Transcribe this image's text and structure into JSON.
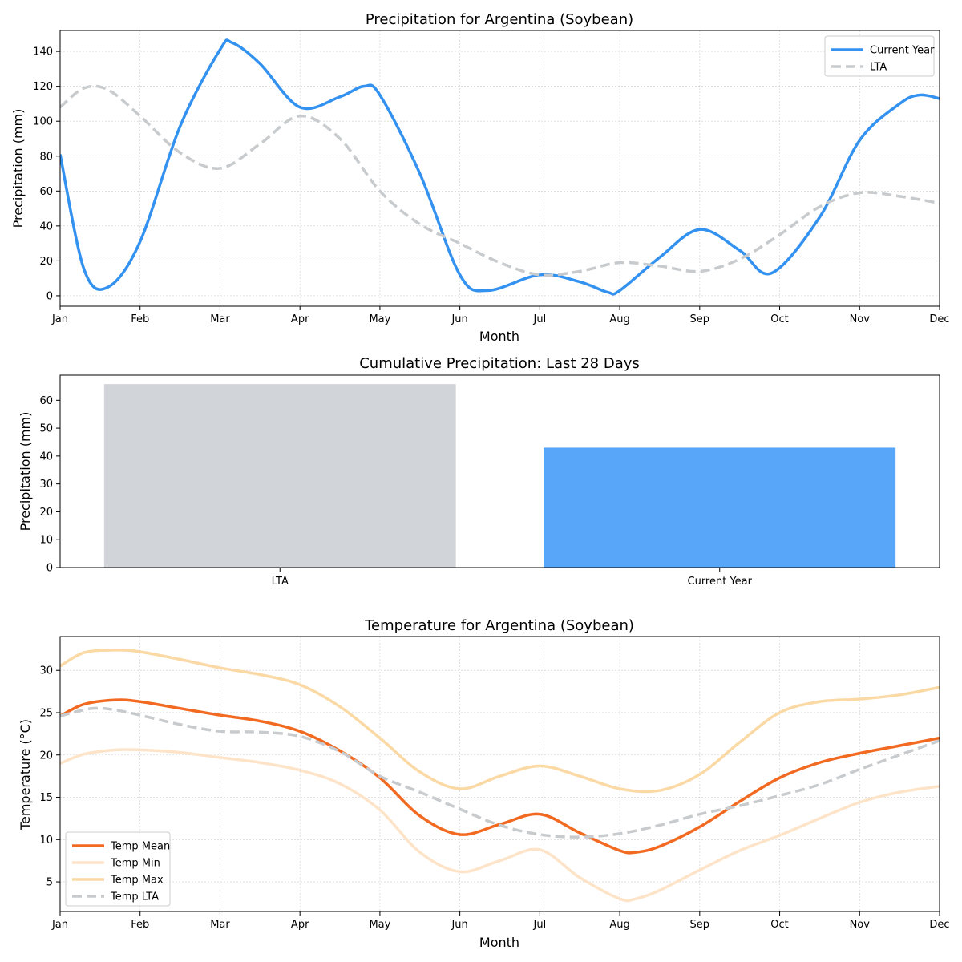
{
  "chart_data": [
    {
      "type": "line",
      "title": "Precipitation for Argentina (Soybean)",
      "xlabel": "Month",
      "ylabel": "Precipitation (mm)",
      "categories": [
        "Jan",
        "Feb",
        "Mar",
        "Apr",
        "May",
        "Jun",
        "Jul",
        "Aug",
        "Sep",
        "Oct",
        "Nov",
        "Dec"
      ],
      "xlim": [
        0,
        11
      ],
      "ylim": [
        -6,
        152
      ],
      "yticks": [
        0,
        20,
        40,
        60,
        80,
        100,
        120,
        140
      ],
      "grid": true,
      "legend_position": "top-right",
      "series": [
        {
          "name": "Current Year",
          "color": "#3391f0",
          "style": "solid",
          "x": [
            0,
            0.3,
            0.6,
            1.0,
            1.5,
            2.0,
            2.15,
            2.5,
            3.0,
            3.5,
            3.8,
            4.0,
            4.5,
            5.0,
            5.35,
            6.0,
            6.5,
            6.85,
            7.0,
            7.5,
            8.0,
            8.5,
            8.9,
            9.5,
            10.0,
            10.5,
            10.75,
            11.0
          ],
          "y": [
            81,
            15,
            5,
            31,
            97,
            141,
            145,
            133,
            108,
            114,
            120,
            115,
            70,
            12,
            3,
            12,
            8,
            2,
            3,
            22,
            38,
            26,
            13,
            45,
            89,
            110,
            115,
            113
          ]
        },
        {
          "name": "LTA",
          "color": "#c8cbcd",
          "style": "dashed",
          "x": [
            0,
            0.3,
            0.6,
            1.0,
            1.5,
            2.0,
            2.5,
            3.0,
            3.5,
            4.0,
            4.5,
            5.0,
            5.5,
            6.0,
            6.5,
            7.0,
            7.5,
            8.0,
            8.5,
            9.0,
            9.5,
            10.0,
            10.5,
            11.0
          ],
          "y": [
            108,
            119,
            118,
            103,
            82,
            73,
            87,
            103,
            90,
            60,
            41,
            30,
            19,
            12,
            14,
            19,
            17,
            14,
            21,
            35,
            51,
            59,
            57,
            53
          ]
        }
      ]
    },
    {
      "type": "bar",
      "title": "Cumulative Precipitation: Last 28 Days",
      "xlabel": "",
      "ylabel": "Precipitation (mm)",
      "categories": [
        "LTA",
        "Current Year"
      ],
      "values": [
        65.8,
        43.0
      ],
      "colors": [
        "#d1d5d9",
        "#58a6fa"
      ],
      "ylim": [
        0,
        69
      ],
      "yticks": [
        0,
        10,
        20,
        30,
        40,
        50,
        60
      ],
      "grid": false
    },
    {
      "type": "line",
      "title": "Temperature for Argentina (Soybean)",
      "xlabel": "Month",
      "ylabel": "Temperature (°C)",
      "categories": [
        "Jan",
        "Feb",
        "Mar",
        "Apr",
        "May",
        "Jun",
        "Jul",
        "Aug",
        "Sep",
        "Oct",
        "Nov",
        "Dec"
      ],
      "xlim": [
        0,
        11
      ],
      "ylim": [
        1.5,
        34
      ],
      "yticks": [
        5,
        10,
        15,
        20,
        25,
        30
      ],
      "grid": true,
      "legend_position": "lower-left",
      "series": [
        {
          "name": "Temp Mean",
          "color": "#f26a21",
          "style": "solid",
          "x": [
            0,
            0.3,
            0.7,
            1.0,
            1.5,
            2.0,
            2.5,
            3.0,
            3.5,
            4.0,
            4.5,
            5.0,
            5.5,
            6.0,
            6.5,
            7.0,
            7.2,
            7.5,
            8.0,
            8.5,
            9.0,
            9.5,
            10.0,
            10.5,
            11.0
          ],
          "y": [
            24.6,
            26.0,
            26.5,
            26.3,
            25.5,
            24.7,
            24.0,
            22.8,
            20.5,
            17.3,
            12.8,
            10.6,
            11.8,
            13.0,
            10.8,
            8.7,
            8.5,
            9.2,
            11.5,
            14.5,
            17.3,
            19.1,
            20.2,
            21.1,
            22.0
          ]
        },
        {
          "name": "Temp Min",
          "color": "#fde4c8",
          "style": "solid",
          "x": [
            0,
            0.3,
            0.7,
            1.0,
            1.5,
            2.0,
            2.5,
            3.0,
            3.5,
            4.0,
            4.5,
            5.0,
            5.5,
            6.0,
            6.5,
            7.0,
            7.2,
            7.5,
            8.0,
            8.5,
            9.0,
            9.5,
            10.0,
            10.5,
            11.0
          ],
          "y": [
            19.0,
            20.1,
            20.6,
            20.6,
            20.3,
            19.7,
            19.1,
            18.2,
            16.6,
            13.5,
            8.5,
            6.2,
            7.5,
            8.8,
            5.5,
            3.0,
            3.0,
            4.0,
            6.4,
            8.7,
            10.5,
            12.5,
            14.4,
            15.6,
            16.3
          ]
        },
        {
          "name": "Temp Max",
          "color": "#fbd9a5",
          "style": "solid",
          "x": [
            0,
            0.3,
            0.7,
            1.0,
            1.5,
            2.0,
            2.5,
            3.0,
            3.5,
            4.0,
            4.5,
            5.0,
            5.5,
            6.0,
            6.5,
            7.0,
            7.5,
            8.0,
            8.5,
            9.0,
            9.5,
            10.0,
            10.5,
            11.0
          ],
          "y": [
            30.5,
            32.1,
            32.4,
            32.2,
            31.3,
            30.3,
            29.5,
            28.3,
            25.7,
            22.0,
            18.0,
            16.0,
            17.5,
            18.7,
            17.5,
            16.0,
            15.8,
            17.7,
            21.5,
            25.0,
            26.3,
            26.6,
            27.1,
            28.0
          ]
        },
        {
          "name": "Temp LTA",
          "color": "#c8cbcd",
          "style": "dashed",
          "x": [
            0,
            0.4,
            0.7,
            1.0,
            1.5,
            2.0,
            2.5,
            3.0,
            3.5,
            4.0,
            4.5,
            5.0,
            5.5,
            6.0,
            6.5,
            7.0,
            7.5,
            8.0,
            8.5,
            9.0,
            9.5,
            10.0,
            10.5,
            11.0
          ],
          "y": [
            24.6,
            25.5,
            25.3,
            24.7,
            23.6,
            22.8,
            22.7,
            22.2,
            20.4,
            17.5,
            15.6,
            13.6,
            11.7,
            10.6,
            10.3,
            10.7,
            11.7,
            13.0,
            14.0,
            15.2,
            16.5,
            18.3,
            20.0,
            21.7
          ]
        }
      ]
    }
  ]
}
